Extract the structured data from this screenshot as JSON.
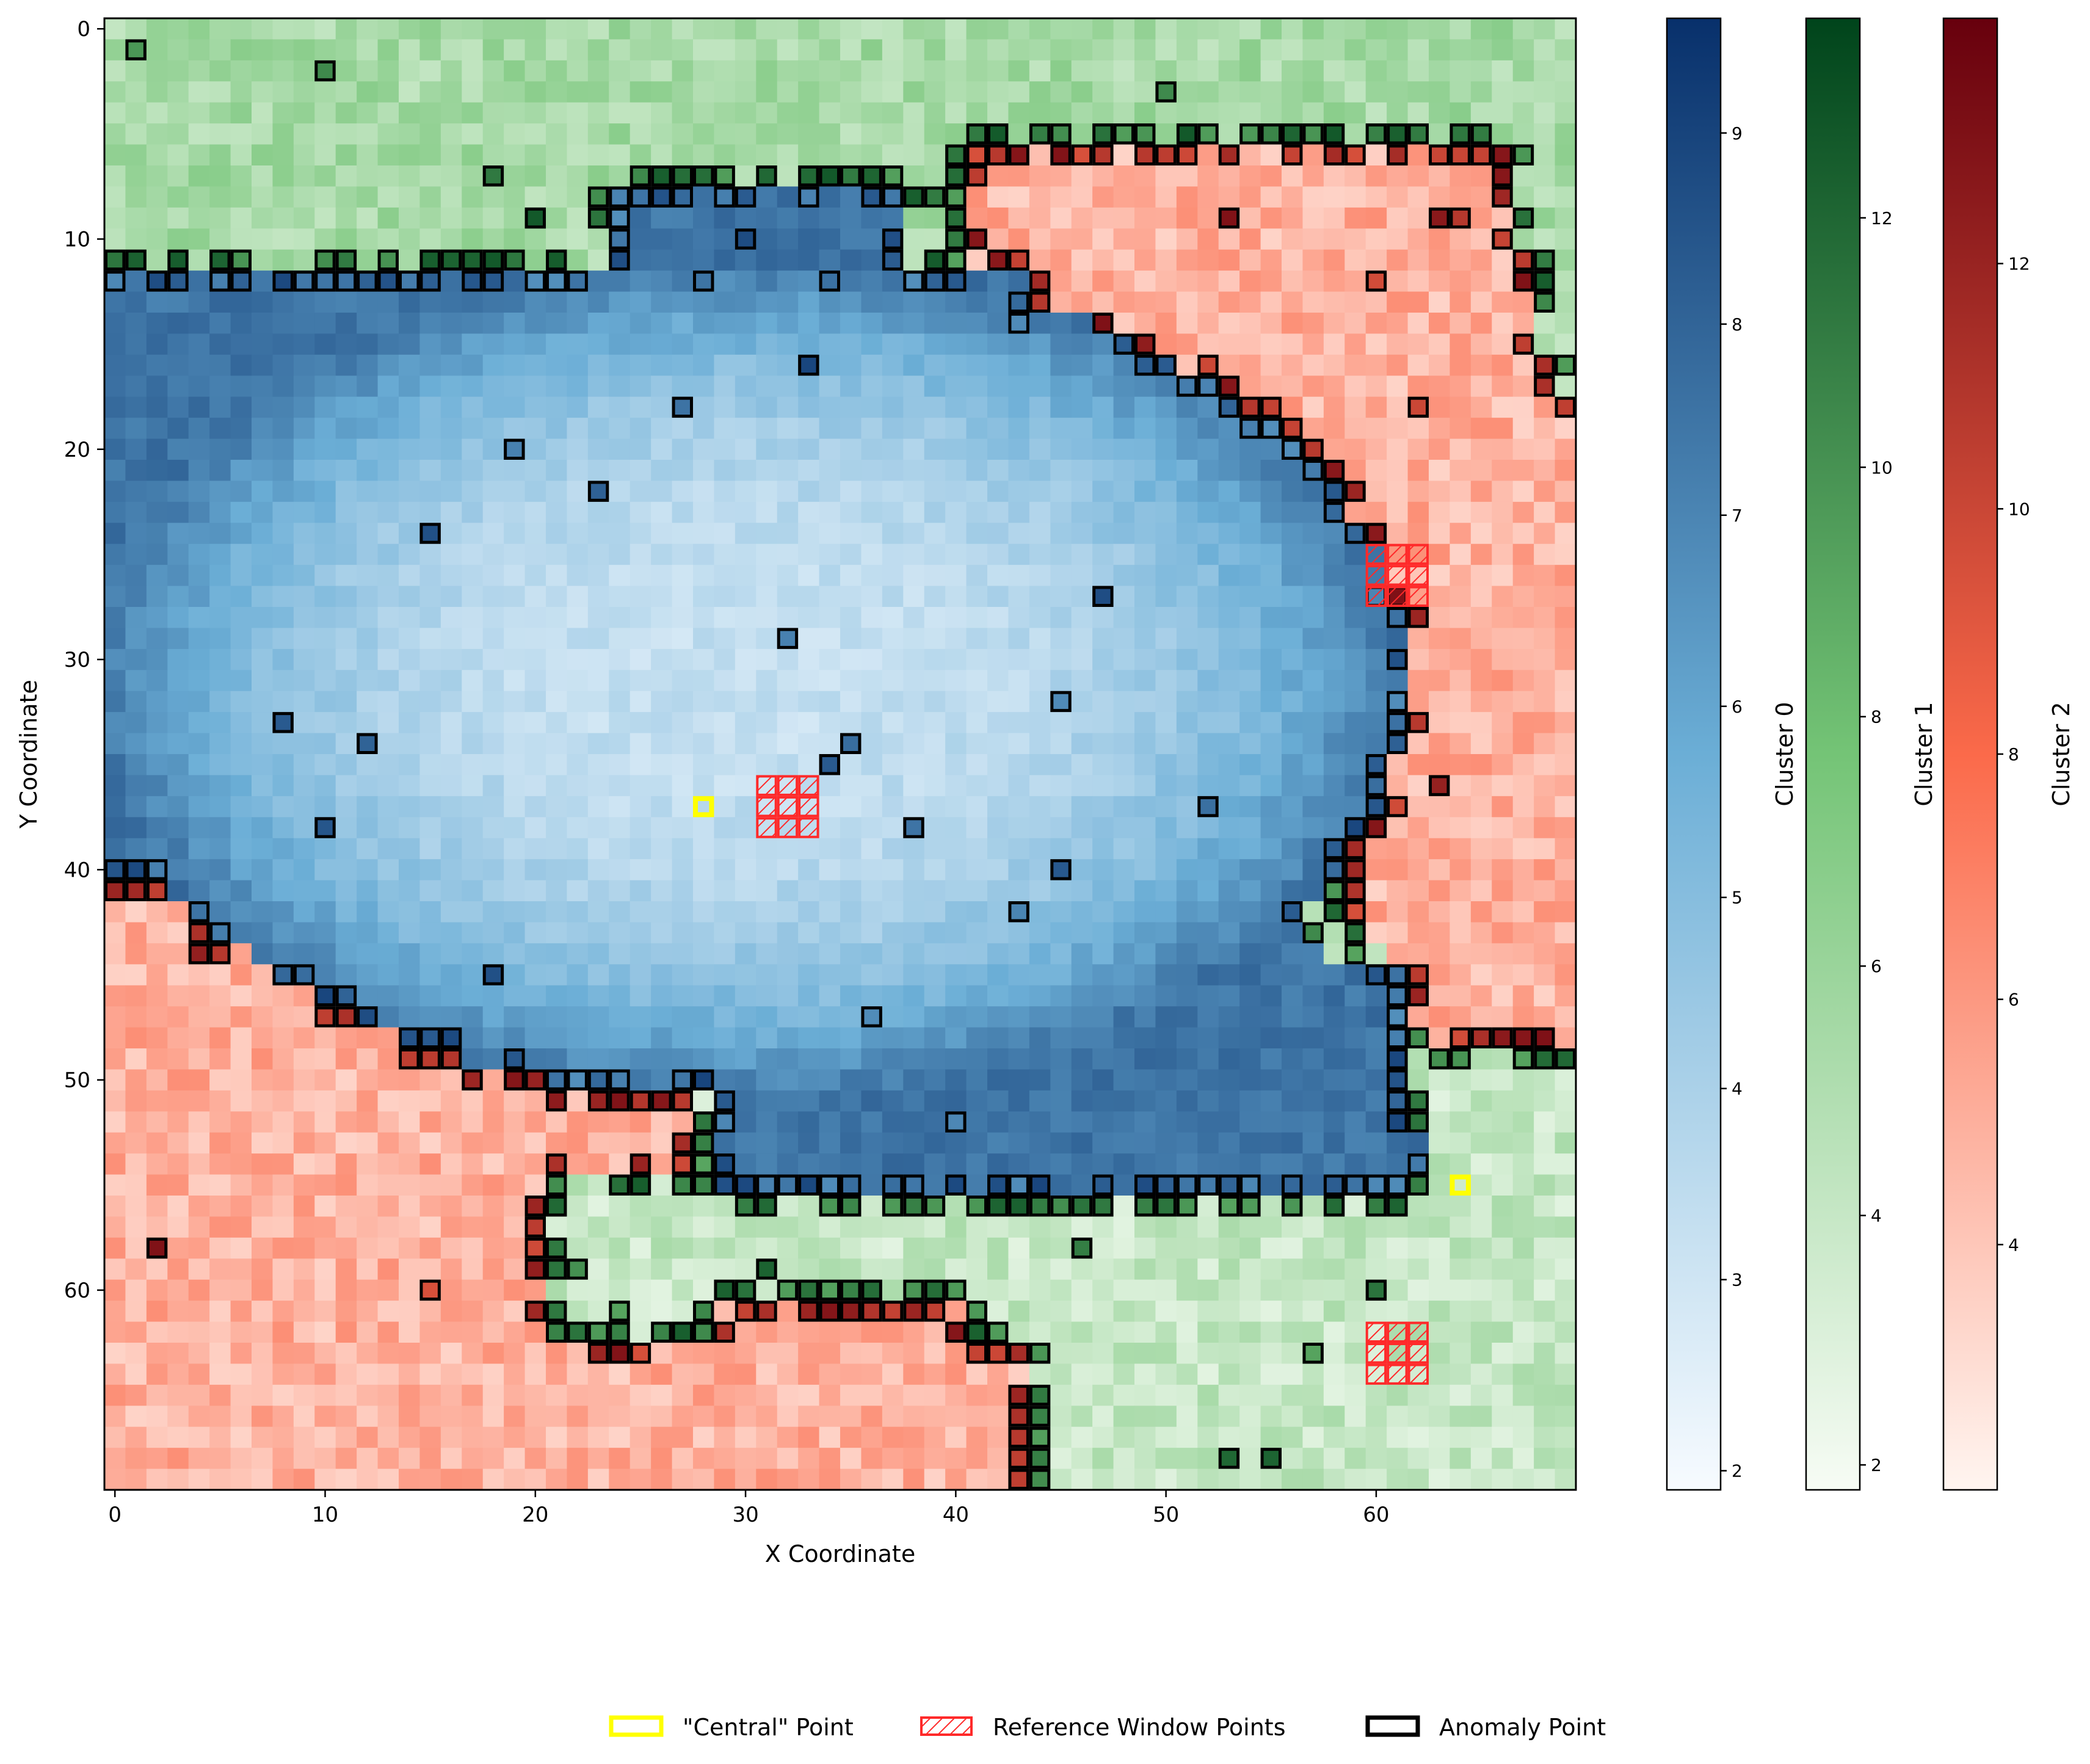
{
  "chart_data": {
    "type": "heatmap",
    "grid_size": [
      70,
      70
    ],
    "xlabel": "X Coordinate",
    "ylabel": "Y Coordinate",
    "xlim": [
      -0.5,
      69.5
    ],
    "ylim": [
      69.5,
      -0.5
    ],
    "x_ticks": [
      "0",
      "10",
      "20",
      "30",
      "40",
      "50",
      "60"
    ],
    "y_ticks": [
      "0",
      "10",
      "20",
      "30",
      "40",
      "50",
      "60"
    ],
    "colorbars": [
      {
        "label": "Cluster 0",
        "cmap": "Blues",
        "range": [
          1.9,
          9.6
        ],
        "ticks": [
          "2",
          "3",
          "4",
          "5",
          "6",
          "7",
          "8",
          "9"
        ],
        "color_low": "#f7fbff",
        "color_mid": "#6baed6",
        "color_high": "#08306b"
      },
      {
        "label": "Cluster 1",
        "cmap": "Greens",
        "range": [
          1.8,
          13.6
        ],
        "ticks": [
          "2",
          "4",
          "6",
          "8",
          "10",
          "12"
        ],
        "color_low": "#f7fcf5",
        "color_mid": "#74c476",
        "color_high": "#00441b"
      },
      {
        "label": "Cluster 2",
        "cmap": "Reds",
        "range": [
          2.0,
          14.0
        ],
        "ticks": [
          "4",
          "6",
          "8",
          "10",
          "12"
        ],
        "color_low": "#fff5f0",
        "color_mid": "#fb6a4a",
        "color_high": "#67000d"
      }
    ],
    "regions": {
      "cluster_0": "blue basin spanning roughly x 0-63, y 7-55",
      "cluster_1": "green areas along top rows, right edge and lower right",
      "cluster_2": "red areas in upper right and lower left"
    },
    "central_points": [
      [
        28,
        37
      ],
      [
        64,
        55
      ]
    ],
    "reference_windows": [
      {
        "x": [
          31,
          33
        ],
        "y": [
          36,
          38
        ]
      },
      {
        "x": [
          60,
          62
        ],
        "y": [
          25,
          27
        ]
      },
      {
        "x": [
          60,
          62
        ],
        "y": [
          62,
          64
        ]
      }
    ],
    "legend": {
      "placement": "bottom-center",
      "items": [
        "\"Central\" Point",
        "Reference Window Points",
        "Anomaly Point"
      ]
    }
  }
}
